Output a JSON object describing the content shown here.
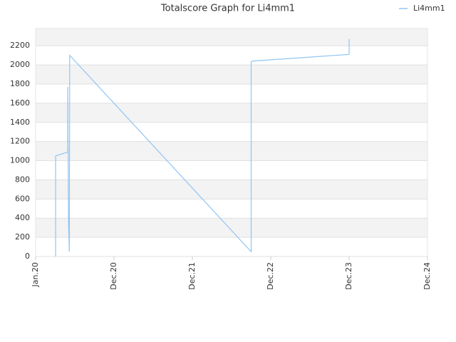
{
  "chart_data": {
    "type": "line",
    "title": "Totalscore Graph for Li4mm1",
    "x": [
      0.255,
      0.255,
      0.41,
      0.41,
      0.415,
      0.42,
      0.43,
      0.435,
      2.75,
      2.75,
      2.765,
      4.0,
      4.0
    ],
    "series": [
      {
        "name": "Li4mm1",
        "color": "#90c5f5",
        "values": [
          0,
          1050,
          1090,
          1770,
          1090,
          350,
          50,
          2100,
          50,
          2030,
          2040,
          2110,
          2270
        ]
      }
    ],
    "xlim": [
      0,
      5
    ],
    "xticks": [
      {
        "value": 0,
        "label": "Jan.20"
      },
      {
        "value": 1,
        "label": "Dec.20"
      },
      {
        "value": 2,
        "label": "Dec.21"
      },
      {
        "value": 3,
        "label": "Dec.22"
      },
      {
        "value": 4,
        "label": "Dec.23"
      },
      {
        "value": 5,
        "label": "Dec.24"
      }
    ],
    "ylim": [
      0,
      2380
    ],
    "yticks": [
      0,
      200,
      400,
      600,
      800,
      1000,
      1200,
      1400,
      1600,
      1800,
      2000,
      2200
    ],
    "grid": true,
    "legend": "top-right"
  }
}
